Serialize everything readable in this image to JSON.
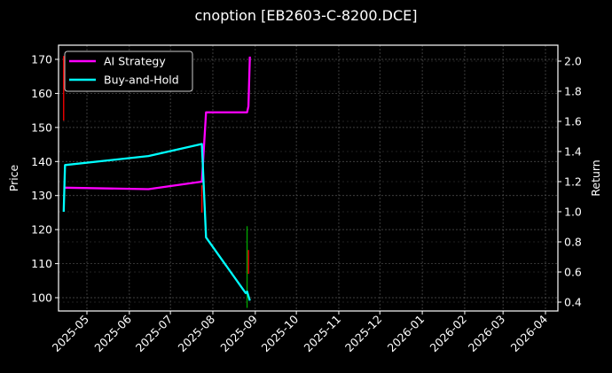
{
  "title": "cnoption [EB2603-C-8200.DCE]",
  "chart_data": {
    "type": "line",
    "title": "cnoption [EB2603-C-8200.DCE]",
    "xlabel": "",
    "ylabel_left": "Price",
    "ylabel_right": "Return",
    "x_ticks": [
      "2025-05",
      "2025-06",
      "2025-07",
      "2025-08",
      "2025-09",
      "2025-10",
      "2025-11",
      "2025-12",
      "2026-01",
      "2026-02",
      "2026-03",
      "2026-04"
    ],
    "y_left_ticks": [
      100,
      110,
      120,
      130,
      140,
      150,
      160,
      170
    ],
    "y_right_ticks": [
      "0.4",
      "0.6",
      "0.8",
      "1.0",
      "1.2",
      "1.4",
      "1.6",
      "1.8",
      "2.0"
    ],
    "ylim_left": [
      96,
      174
    ],
    "ylim_right": [
      0.35,
      2.08
    ],
    "grid": true,
    "legend_position": "upper left",
    "series": [
      {
        "name": "AI Strategy",
        "color": "#ff00ff",
        "axis": "right",
        "points": [
          {
            "x": "2025-04-14",
            "y": 1.16
          },
          {
            "x": "2025-06-15",
            "y": 1.15
          },
          {
            "x": "2025-07-24",
            "y": 1.2
          },
          {
            "x": "2025-07-27",
            "y": 1.66
          },
          {
            "x": "2025-08-26",
            "y": 1.66
          },
          {
            "x": "2025-08-27",
            "y": 1.7
          },
          {
            "x": "2025-08-28",
            "y": 2.03
          }
        ]
      },
      {
        "name": "Buy-and-Hold",
        "color": "#00ffff",
        "axis": "right",
        "points": [
          {
            "x": "2025-04-14",
            "y": 1.0
          },
          {
            "x": "2025-04-15",
            "y": 1.31
          },
          {
            "x": "2025-06-15",
            "y": 1.37
          },
          {
            "x": "2025-07-24",
            "y": 1.45
          },
          {
            "x": "2025-07-27",
            "y": 0.83
          },
          {
            "x": "2025-08-25",
            "y": 0.46
          },
          {
            "x": "2025-08-26",
            "y": 0.47
          },
          {
            "x": "2025-08-28",
            "y": 0.41
          }
        ]
      }
    ],
    "candles": [
      {
        "x": "2025-04-14",
        "low": 152,
        "high": 171,
        "color": "#ff0000"
      },
      {
        "x": "2025-07-24",
        "low": 125,
        "high": 133,
        "color": "#ff0000"
      },
      {
        "x": "2025-08-26",
        "low": 97,
        "high": 121,
        "color": "#00aa00"
      },
      {
        "x": "2025-08-27",
        "low": 107,
        "high": 114,
        "color": "#ff0000"
      }
    ]
  }
}
